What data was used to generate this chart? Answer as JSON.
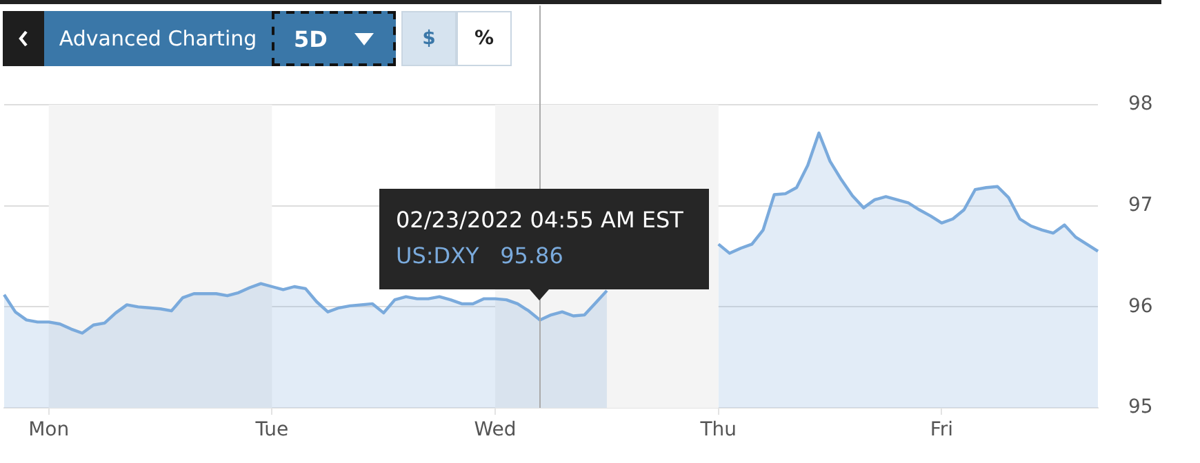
{
  "chart_data": {
    "type": "area",
    "categories": [
      null,
      null,
      null,
      null,
      "Mon",
      null,
      null,
      null,
      null,
      null,
      null,
      null,
      null,
      null,
      null,
      null,
      null,
      null,
      null,
      null,
      null,
      null,
      null,
      null,
      "Tue",
      null,
      null,
      null,
      null,
      null,
      null,
      null,
      null,
      null,
      null,
      null,
      null,
      null,
      null,
      null,
      null,
      null,
      null,
      null,
      "Wed",
      null,
      null,
      null,
      null,
      null,
      null,
      null,
      null,
      null,
      null,
      null,
      null,
      null,
      null,
      null,
      null,
      null,
      null,
      null,
      "Thu",
      null,
      null,
      null,
      null,
      null,
      null,
      null,
      null,
      null,
      null,
      null,
      null,
      null,
      null,
      null,
      null,
      null,
      null,
      null,
      "Fri",
      null,
      null,
      null,
      null,
      null,
      null,
      null,
      null,
      null,
      null,
      null,
      null,
      null,
      null
    ],
    "series": [
      {
        "color": "#7aaadc",
        "values": [
          96.12,
          95.95,
          95.87,
          95.85,
          95.85,
          95.83,
          95.78,
          95.74,
          95.82,
          95.84,
          95.94,
          96.02,
          96.0,
          95.99,
          95.98,
          95.96,
          96.09,
          96.13,
          96.13,
          96.13,
          96.11,
          96.14,
          96.19,
          96.23,
          96.2,
          96.17,
          96.2,
          96.18,
          96.05,
          95.95,
          95.99,
          96.01,
          96.02,
          96.03,
          95.94,
          96.07,
          96.1,
          96.08,
          96.08,
          96.1,
          96.07,
          96.03,
          96.03,
          96.08,
          96.08,
          96.07,
          96.03,
          95.96,
          95.87,
          95.92,
          95.95,
          95.91,
          95.92,
          96.04,
          96.16,
          null,
          null,
          null,
          null,
          null,
          null,
          null,
          null,
          null,
          96.62,
          96.53,
          96.58,
          96.62,
          96.76,
          97.11,
          97.12,
          97.18,
          97.4,
          97.72,
          97.44,
          97.26,
          97.1,
          96.98,
          97.06,
          97.09,
          97.06,
          97.03,
          96.96,
          96.9,
          96.83,
          96.87,
          96.96,
          97.16,
          97.18,
          97.19,
          97.08,
          96.87,
          96.8,
          96.76,
          96.73,
          96.81,
          96.69,
          96.62,
          96.55
        ]
      }
    ],
    "ylim": [
      95,
      98
    ],
    "yticks": [
      95,
      96,
      97,
      98
    ],
    "grid": "y",
    "legend": false,
    "marker": "none",
    "line_style": "solid",
    "bands": [
      {
        "axis": "x",
        "from": "Mon",
        "to": "Tue",
        "color": "#f4f4f4"
      },
      {
        "axis": "x",
        "from": "Wed",
        "to": "Thu",
        "color": "#f4f4f4"
      }
    ],
    "annotations": [
      "Advanced Charting",
      "5D",
      "$",
      "%",
      "02/23/2022 04:55 AM EST",
      "US:DXY   95.86"
    ]
  }
}
